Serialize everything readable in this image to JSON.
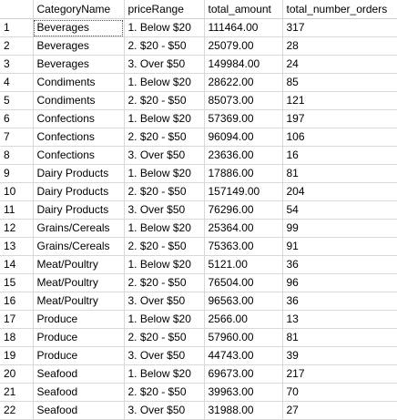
{
  "grid": {
    "columns": [
      "",
      "CategoryName",
      "priceRange",
      "total_amount",
      "total_number_orders"
    ],
    "rows": [
      [
        "1",
        "Beverages",
        "1. Below $20",
        "111464.00",
        "317"
      ],
      [
        "2",
        "Beverages",
        "2. $20 - $50",
        "25079.00",
        "28"
      ],
      [
        "3",
        "Beverages",
        "3. Over $50",
        "149984.00",
        "24"
      ],
      [
        "4",
        "Condiments",
        "1. Below $20",
        "28622.00",
        "85"
      ],
      [
        "5",
        "Condiments",
        "2. $20 - $50",
        "85073.00",
        "121"
      ],
      [
        "6",
        "Confections",
        "1. Below $20",
        "57369.00",
        "197"
      ],
      [
        "7",
        "Confections",
        "2. $20 - $50",
        "96094.00",
        "106"
      ],
      [
        "8",
        "Confections",
        "3. Over $50",
        "23636.00",
        "16"
      ],
      [
        "9",
        "Dairy Products",
        "1. Below $20",
        "17886.00",
        "81"
      ],
      [
        "10",
        "Dairy Products",
        "2. $20 - $50",
        "157149.00",
        "204"
      ],
      [
        "11",
        "Dairy Products",
        "3. Over $50",
        "76296.00",
        "54"
      ],
      [
        "12",
        "Grains/Cereals",
        "1. Below $20",
        "25364.00",
        "99"
      ],
      [
        "13",
        "Grains/Cereals",
        "2. $20 - $50",
        "75363.00",
        "91"
      ],
      [
        "14",
        "Meat/Poultry",
        "1. Below $20",
        "5121.00",
        "36"
      ],
      [
        "15",
        "Meat/Poultry",
        "2. $20 - $50",
        "76504.00",
        "96"
      ],
      [
        "16",
        "Meat/Poultry",
        "3. Over $50",
        "96563.00",
        "36"
      ],
      [
        "17",
        "Produce",
        "1. Below $20",
        "2566.00",
        "13"
      ],
      [
        "18",
        "Produce",
        "2. $20 - $50",
        "57960.00",
        "81"
      ],
      [
        "19",
        "Produce",
        "3. Over $50",
        "44743.00",
        "39"
      ],
      [
        "20",
        "Seafood",
        "1. Below $20",
        "69673.00",
        "217"
      ],
      [
        "21",
        "Seafood",
        "2. $20 - $50",
        "39963.00",
        "70"
      ],
      [
        "22",
        "Seafood",
        "3. Over $50",
        "31988.00",
        "27"
      ]
    ],
    "selected_cell": {
      "row": 0,
      "col": 1
    },
    "colors": {
      "gridline": "#d8d8d8",
      "selection_outline": "#555555"
    }
  }
}
